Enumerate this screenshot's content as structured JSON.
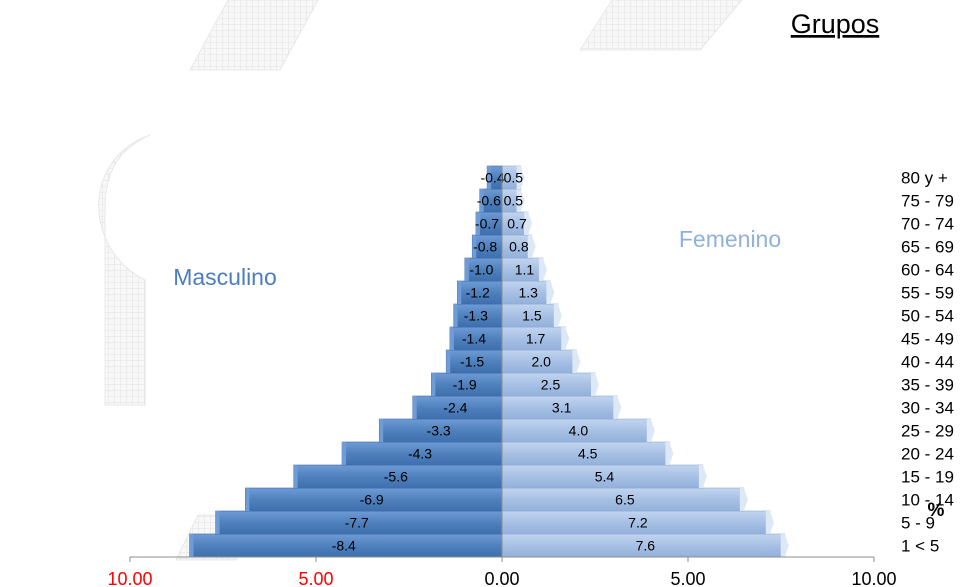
{
  "chart_data": {
    "type": "bar",
    "orientation": "horizontal",
    "style": "population-pyramid",
    "categories": [
      "1 < 5",
      "5 - 9",
      "10 - 14",
      "15 - 19",
      "20 - 24",
      "25 - 29",
      "30 - 34",
      "35 - 39",
      "40 - 44",
      "45 - 49",
      "50 - 54",
      "55 - 59",
      "60 - 64",
      "65 - 69",
      "70 - 74",
      "75 - 79",
      "80 y +"
    ],
    "category_axis_title": "Grupos",
    "series": [
      {
        "name": "Masculino",
        "color": "#4f81bd",
        "values": [
          -8.4,
          -7.7,
          -6.9,
          -5.6,
          -4.3,
          -3.3,
          -2.4,
          -1.9,
          -1.5,
          -1.4,
          -1.3,
          -1.2,
          -1.0,
          -0.8,
          -0.7,
          -0.6,
          -0.4
        ]
      },
      {
        "name": "Femenino",
        "color": "#a7c0e4",
        "values": [
          7.6,
          7.2,
          6.5,
          5.4,
          4.5,
          4.0,
          3.1,
          2.5,
          2.0,
          1.7,
          1.5,
          1.3,
          1.1,
          0.8,
          0.7,
          0.5,
          0.5
        ]
      }
    ],
    "series_label_colors": {
      "Masculino": "#4a7ebf",
      "Femenino": "#8eb2dc"
    },
    "xlim": [
      -10,
      10
    ],
    "x_ticks": [
      {
        "value": -10,
        "label": "10.00",
        "color": "#ff0000"
      },
      {
        "value": -5,
        "label": "5.00",
        "color": "#ff0000"
      },
      {
        "value": 0,
        "label": "0.00",
        "color": "#000000"
      },
      {
        "value": 5,
        "label": "5.00",
        "color": "#000000"
      },
      {
        "value": 10,
        "label": "10.00",
        "color": "#000000"
      }
    ],
    "xlabel": "%",
    "grid": false,
    "watermark_color": "#e4e4e4"
  }
}
